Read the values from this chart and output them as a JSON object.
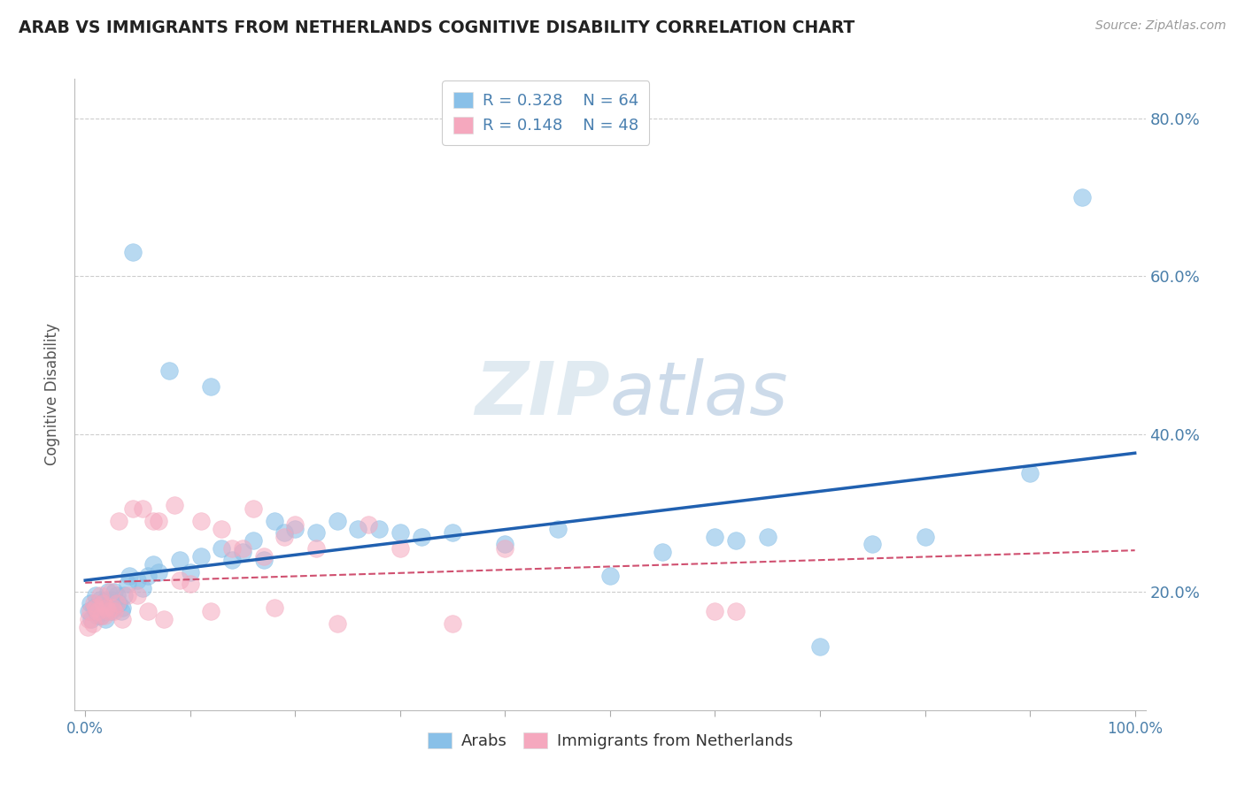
{
  "title": "ARAB VS IMMIGRANTS FROM NETHERLANDS COGNITIVE DISABILITY CORRELATION CHART",
  "source": "Source: ZipAtlas.com",
  "ylabel": "Cognitive Disability",
  "xlim": [
    -1,
    101
  ],
  "ylim": [
    0.05,
    0.85
  ],
  "arab_R": 0.328,
  "arab_N": 64,
  "neth_R": 0.148,
  "neth_N": 48,
  "arab_color": "#89c0e8",
  "neth_color": "#f5a8be",
  "arab_line_color": "#2060b0",
  "neth_line_color": "#d05070",
  "background_color": "#ffffff",
  "grid_color": "#c8c8c8",
  "title_color": "#222222",
  "axis_label_color": "#4a7faa",
  "watermark_color": "#dce8f2",
  "legend_R_color": "#4a80b0",
  "arab_x": [
    0.3,
    0.5,
    0.6,
    0.8,
    1.0,
    1.1,
    1.2,
    1.4,
    1.5,
    1.6,
    1.8,
    1.9,
    2.0,
    2.1,
    2.2,
    2.4,
    2.5,
    2.7,
    2.8,
    3.0,
    3.2,
    3.4,
    3.5,
    3.7,
    4.0,
    4.2,
    4.5,
    5.0,
    5.5,
    6.0,
    6.5,
    7.0,
    8.0,
    9.0,
    10.0,
    11.0,
    12.0,
    13.0,
    14.0,
    15.0,
    16.0,
    17.0,
    18.0,
    19.0,
    20.0,
    22.0,
    24.0,
    26.0,
    28.0,
    30.0,
    32.0,
    35.0,
    40.0,
    45.0,
    50.0,
    55.0,
    60.0,
    62.0,
    65.0,
    70.0,
    75.0,
    80.0,
    90.0,
    95.0
  ],
  "arab_y": [
    0.175,
    0.185,
    0.165,
    0.18,
    0.195,
    0.175,
    0.17,
    0.19,
    0.17,
    0.185,
    0.175,
    0.165,
    0.19,
    0.18,
    0.2,
    0.175,
    0.19,
    0.18,
    0.2,
    0.195,
    0.185,
    0.175,
    0.18,
    0.195,
    0.21,
    0.22,
    0.63,
    0.215,
    0.205,
    0.22,
    0.235,
    0.225,
    0.48,
    0.24,
    0.225,
    0.245,
    0.46,
    0.255,
    0.24,
    0.25,
    0.265,
    0.24,
    0.29,
    0.275,
    0.28,
    0.275,
    0.29,
    0.28,
    0.28,
    0.275,
    0.27,
    0.275,
    0.26,
    0.28,
    0.22,
    0.25,
    0.27,
    0.265,
    0.27,
    0.13,
    0.26,
    0.27,
    0.35,
    0.7
  ],
  "neth_x": [
    0.2,
    0.3,
    0.5,
    0.7,
    0.8,
    1.0,
    1.2,
    1.4,
    1.5,
    1.7,
    1.8,
    2.0,
    2.2,
    2.4,
    2.6,
    2.8,
    3.0,
    3.2,
    3.5,
    4.0,
    4.5,
    5.0,
    5.5,
    6.0,
    6.5,
    7.0,
    7.5,
    8.5,
    9.0,
    10.0,
    11.0,
    12.0,
    13.0,
    14.0,
    15.0,
    16.0,
    17.0,
    18.0,
    19.0,
    20.0,
    22.0,
    24.0,
    27.0,
    30.0,
    35.0,
    40.0,
    60.0,
    62.0
  ],
  "neth_y": [
    0.155,
    0.165,
    0.175,
    0.16,
    0.185,
    0.18,
    0.175,
    0.195,
    0.17,
    0.185,
    0.17,
    0.18,
    0.175,
    0.2,
    0.18,
    0.175,
    0.185,
    0.29,
    0.165,
    0.195,
    0.305,
    0.195,
    0.305,
    0.175,
    0.29,
    0.29,
    0.165,
    0.31,
    0.215,
    0.21,
    0.29,
    0.175,
    0.28,
    0.255,
    0.255,
    0.305,
    0.245,
    0.18,
    0.27,
    0.285,
    0.255,
    0.16,
    0.285,
    0.255,
    0.16,
    0.255,
    0.175,
    0.175
  ]
}
